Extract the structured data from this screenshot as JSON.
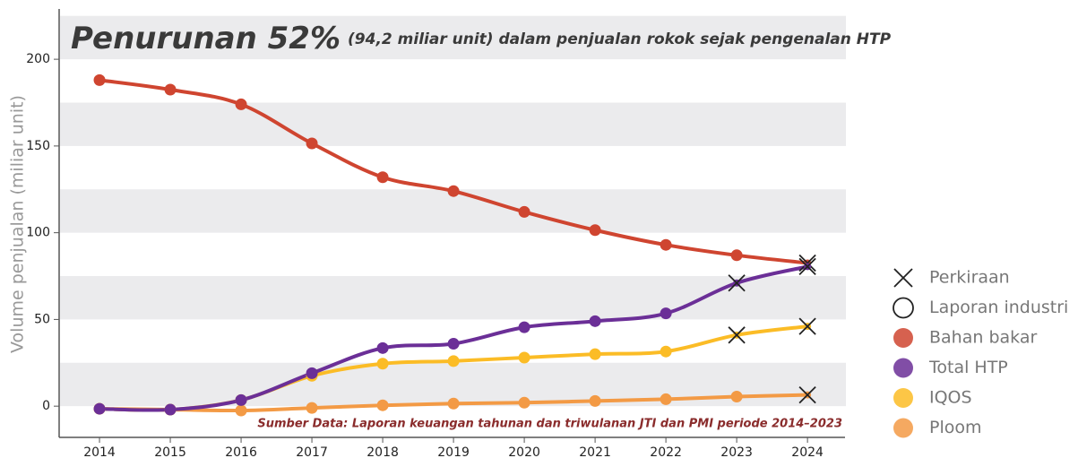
{
  "chart_data": {
    "type": "line",
    "title": "Penurunan 52%",
    "subtitle": "(94,2 miliar unit) dalam penjualan rokok sejak pengenalan HTP",
    "source": "Sumber Data: Laporan keuangan tahunan dan triwulanan JTI dan PMI periode 2014–2023",
    "ylabel": "Volume penjualan (miliar unit)",
    "x": [
      2014,
      2015,
      2016,
      2017,
      2018,
      2019,
      2020,
      2021,
      2022,
      2023,
      2024
    ],
    "xlim": [
      2013.43,
      2024.53
    ],
    "xticks": [
      2014,
      2015,
      2016,
      2017,
      2018,
      2019,
      2020,
      2021,
      2022,
      2023,
      2024
    ],
    "ylim": [
      -18,
      229
    ],
    "yticks": [
      0,
      50,
      100,
      150,
      200
    ],
    "grid": "bands",
    "markers": [
      {
        "name": "Perkiraan",
        "symbol": "x"
      },
      {
        "name": "Laporan industri",
        "symbol": "o"
      }
    ],
    "series": [
      {
        "name": "Bahan bakar",
        "color": "#cf4530",
        "values": [
          188,
          182.5,
          174,
          151.5,
          132,
          124,
          112,
          101.5,
          93,
          87,
          82.5
        ],
        "symbols": [
          "o",
          "o",
          "o",
          "o",
          "o",
          "o",
          "o",
          "o",
          "o",
          "o",
          "x"
        ]
      },
      {
        "name": "Ploom",
        "color": "#f39a45",
        "values": [
          -1.5,
          -2,
          -2.5,
          -1,
          0.5,
          1.5,
          2,
          3,
          4,
          5.5,
          6.5
        ],
        "symbols": [
          "o",
          "o",
          "o",
          "o",
          "o",
          "o",
          "o",
          "o",
          "o",
          "o",
          "x"
        ]
      },
      {
        "name": "IQOS",
        "color": "#fbbc26",
        "values": [
          -1.5,
          -2,
          3.5,
          17.5,
          24.5,
          26,
          28,
          30,
          31.5,
          41,
          46
        ],
        "symbols": [
          "o",
          "o",
          "o",
          "o",
          "o",
          "o",
          "o",
          "o",
          "o",
          "x",
          "x"
        ]
      },
      {
        "name": "Total HTP",
        "color": "#6b2f97",
        "values": [
          -1.5,
          -2,
          3.5,
          19,
          33.5,
          36,
          45.5,
          49,
          53.5,
          71,
          80.5
        ],
        "symbols": [
          "o",
          "o",
          "o",
          "o",
          "o",
          "o",
          "o",
          "o",
          "o",
          "x",
          "x"
        ]
      }
    ],
    "legend_order": [
      0,
      3,
      2,
      1
    ]
  }
}
